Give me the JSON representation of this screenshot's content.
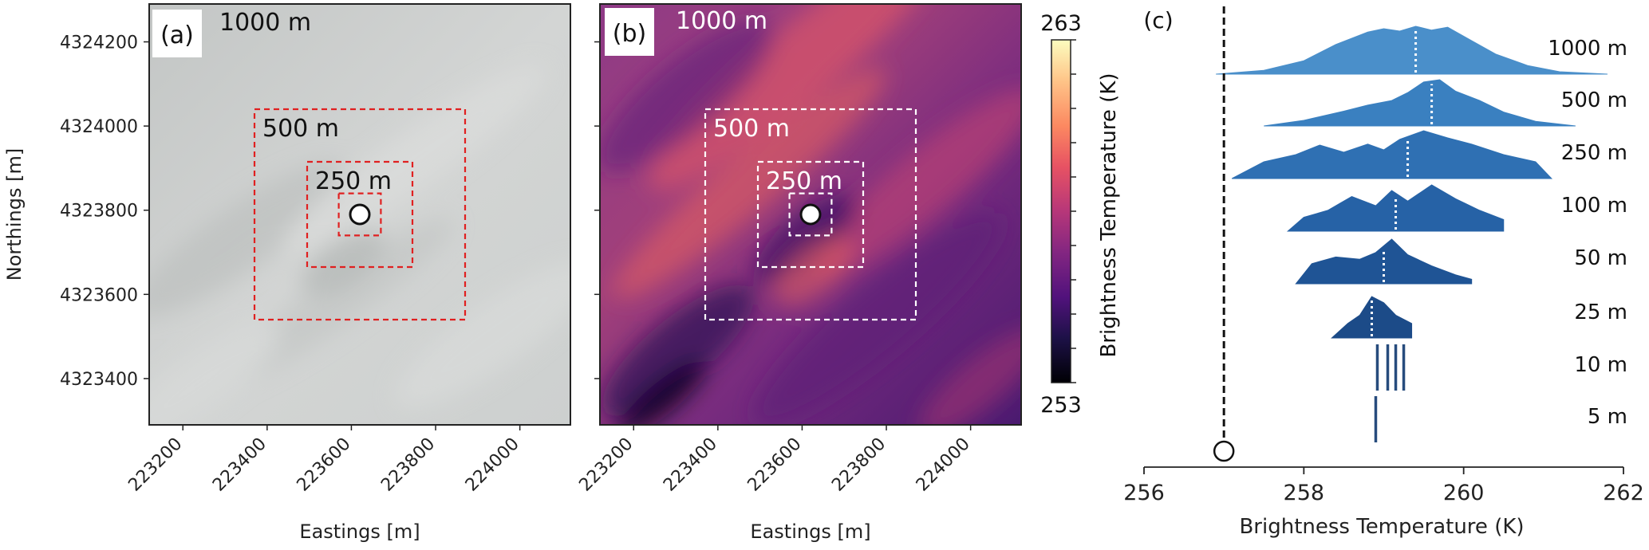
{
  "chart_data": [
    {
      "type": "heatmap",
      "panel_label": "(a)",
      "title": "1000 m",
      "xlabel": "Eastings [m]",
      "ylabel": "Northings [m]",
      "xticks": [
        223200,
        223400,
        223600,
        223800,
        224000
      ],
      "yticks": [
        4323400,
        4323600,
        4323800,
        4324000,
        4324200
      ],
      "xlim": [
        223120,
        224120
      ],
      "ylim": [
        4323290,
        4324290
      ],
      "center": [
        223620,
        4323790
      ],
      "boxes": [
        {
          "label": "500 m",
          "size": 500
        },
        {
          "label": "250 m",
          "size": 250
        },
        {
          "label": "",
          "size": 100
        }
      ],
      "box_color": "#e02020",
      "image": "grayscale aerial imagery"
    },
    {
      "type": "heatmap",
      "panel_label": "(b)",
      "title": "1000 m",
      "xlabel": "Eastings [m]",
      "xticks": [
        223200,
        223400,
        223600,
        223800,
        224000
      ],
      "xlim": [
        223120,
        224120
      ],
      "ylim": [
        4323290,
        4324290
      ],
      "center": [
        223620,
        4323790
      ],
      "boxes": [
        {
          "label": "500 m",
          "size": 500
        },
        {
          "label": "250 m",
          "size": 250
        },
        {
          "label": "",
          "size": 100
        }
      ],
      "box_color": "#ffffff",
      "colormap": "magma",
      "colorbar": {
        "label": "Brightness Temperature (K)",
        "min": 253,
        "max": 263
      }
    },
    {
      "type": "area",
      "panel_label": "(c)",
      "xlabel": "Brightness Temperature (K)",
      "xlim": [
        256,
        262
      ],
      "xticks": [
        256,
        258,
        260,
        262
      ],
      "reference_value": 257.0,
      "series": [
        {
          "name": "1000 m",
          "color": "#4a8fca",
          "mean": 259.4,
          "x": [
            256.9,
            257.5,
            258.0,
            258.4,
            258.8,
            259.0,
            259.2,
            259.4,
            259.6,
            259.8,
            260.1,
            260.4,
            260.8,
            261.2,
            261.8
          ],
          "y": [
            0.0,
            0.08,
            0.28,
            0.62,
            0.88,
            0.95,
            0.9,
            1.0,
            0.92,
            0.98,
            0.7,
            0.42,
            0.18,
            0.05,
            0.0
          ]
        },
        {
          "name": "500 m",
          "color": "#3a80c0",
          "mean": 259.6,
          "x": [
            257.5,
            258.0,
            258.5,
            258.8,
            259.1,
            259.3,
            259.5,
            259.7,
            259.9,
            260.2,
            260.5,
            260.9,
            261.4
          ],
          "y": [
            0.0,
            0.12,
            0.32,
            0.45,
            0.55,
            0.72,
            0.95,
            1.0,
            0.75,
            0.55,
            0.3,
            0.1,
            0.0
          ]
        },
        {
          "name": "250 m",
          "color": "#2f70b3",
          "mean": 259.3,
          "x": [
            257.1,
            257.5,
            257.9,
            258.2,
            258.5,
            258.8,
            259.0,
            259.2,
            259.5,
            259.8,
            260.1,
            260.5,
            260.9,
            261.1
          ],
          "y": [
            0.0,
            0.35,
            0.5,
            0.7,
            0.55,
            0.72,
            0.6,
            0.82,
            1.0,
            0.85,
            0.72,
            0.5,
            0.35,
            0.0
          ]
        },
        {
          "name": "100 m",
          "color": "#2662a6",
          "mean": 259.15,
          "x": [
            257.8,
            258.0,
            258.3,
            258.6,
            258.9,
            259.1,
            259.3,
            259.6,
            259.9,
            260.2,
            260.5
          ],
          "y": [
            0.0,
            0.3,
            0.45,
            0.75,
            0.55,
            0.88,
            0.65,
            1.0,
            0.7,
            0.45,
            0.25
          ]
        },
        {
          "name": "50 m",
          "color": "#1f5495",
          "mean": 259.0,
          "x": [
            257.9,
            258.1,
            258.4,
            258.7,
            258.9,
            259.1,
            259.3,
            259.6,
            259.9,
            260.1
          ],
          "y": [
            0.0,
            0.45,
            0.6,
            0.55,
            0.7,
            1.0,
            0.65,
            0.4,
            0.2,
            0.1
          ]
        },
        {
          "name": "25 m",
          "color": "#1c4b88",
          "mean": 258.85,
          "x": [
            258.35,
            258.55,
            258.7,
            258.85,
            259.0,
            259.15,
            259.35
          ],
          "y": [
            0.0,
            0.35,
            0.55,
            1.0,
            0.85,
            0.55,
            0.35
          ]
        },
        {
          "name": "10 m",
          "color": "#274c7d",
          "ticks": [
            258.92,
            259.05,
            259.15,
            259.25
          ]
        },
        {
          "name": "5 m",
          "color": "#274c7d",
          "ticks": [
            258.9
          ]
        }
      ]
    }
  ]
}
